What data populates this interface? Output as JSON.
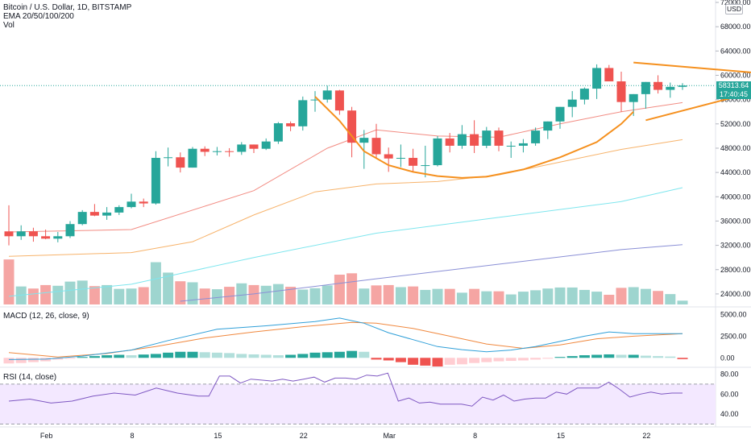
{
  "header": {
    "symbol_line": "Bitcoin / U.S. Dollar, 1D, BITSTAMP",
    "ema_line": "EMA 20/50/100/200",
    "vol_line": "Vol",
    "currency_badge": "USD"
  },
  "last_price": {
    "value": "58313.64",
    "countdown": "17:40:45"
  },
  "macd_legend": "MACD (12, 26, close, 9)",
  "rsi_legend": "RSI (14, close)",
  "colors": {
    "up": "#26a69a",
    "down": "#ef5350",
    "vol_up": "#9ed5cf",
    "vol_down": "#f5a5a3",
    "ema20": "#f28b82",
    "ema50": "#f7b36b",
    "ema100": "#7ee6ee",
    "ema200": "#8a8fd6",
    "macd": "#2f9fd8",
    "signal": "#f0883e",
    "pattern": "#f5901e"
  },
  "chart_data": [
    {
      "type": "candlestick",
      "title": "Bitcoin / U.S. Dollar, 1D, BITSTAMP",
      "ylim": [
        22000,
        72000
      ],
      "y_ticks": [
        "72000.00",
        "68000.00",
        "64000.00",
        "60000.00",
        "56000.00",
        "52000.00",
        "48000.00",
        "44000.00",
        "40000.00",
        "36000.00",
        "32000.00",
        "28000.00",
        "24000.00"
      ],
      "y_tick_values": [
        72000,
        68000,
        64000,
        60000,
        56000,
        52000,
        48000,
        44000,
        40000,
        36000,
        32000,
        28000,
        24000
      ],
      "x_ticks": [
        {
          "label": "Feb",
          "day": 4
        },
        {
          "label": "8",
          "day": 11
        },
        {
          "label": "15",
          "day": 18
        },
        {
          "label": "22",
          "day": 25
        },
        {
          "label": "Mar",
          "day": 32
        },
        {
          "label": "8",
          "day": 39
        },
        {
          "label": "15",
          "day": 46
        },
        {
          "label": "22",
          "day": 53
        }
      ],
      "ohlc": [
        [
          34300,
          38600,
          32000,
          33500
        ],
        [
          33500,
          35300,
          32900,
          34300
        ],
        [
          34300,
          34900,
          32600,
          33500
        ],
        [
          33500,
          34600,
          33000,
          33100
        ],
        [
          33100,
          34200,
          32500,
          33500
        ],
        [
          33500,
          36000,
          33200,
          35500
        ],
        [
          35500,
          37800,
          35300,
          37500
        ],
        [
          37500,
          38800,
          36800,
          36900
        ],
        [
          36900,
          38300,
          36200,
          37400
        ],
        [
          37400,
          38600,
          37000,
          38300
        ],
        [
          38300,
          40500,
          38100,
          39200
        ],
        [
          39200,
          39700,
          38300,
          38900
        ],
        [
          38900,
          47500,
          38700,
          46400
        ],
        [
          46400,
          48100,
          45000,
          46500
        ],
        [
          46500,
          47300,
          44000,
          44800
        ],
        [
          44800,
          48200,
          44800,
          47900
        ],
        [
          47900,
          48300,
          46700,
          47400
        ],
        [
          47400,
          48200,
          46800,
          47500
        ],
        [
          47500,
          48000,
          46600,
          47400
        ],
        [
          47400,
          49000,
          46900,
          48600
        ],
        [
          48600,
          48600,
          47200,
          47900
        ],
        [
          47900,
          49600,
          47700,
          49100
        ],
        [
          49100,
          52300,
          48700,
          52100
        ],
        [
          52100,
          52400,
          50800,
          51600
        ],
        [
          51600,
          56500,
          50900,
          55900
        ],
        [
          55900,
          57400,
          54000,
          56000
        ],
        [
          56000,
          58300,
          55500,
          57500
        ],
        [
          57500,
          57600,
          53500,
          54200
        ],
        [
          54200,
          54800,
          46500,
          48900
        ],
        [
          48900,
          51000,
          44600,
          49700
        ],
        [
          49700,
          52000,
          46300,
          47000
        ],
        [
          47000,
          48100,
          44100,
          46300
        ],
        [
          46300,
          48600,
          44900,
          46400
        ],
        [
          46400,
          47900,
          44000,
          45100
        ],
        [
          45100,
          48400,
          43200,
          45200
        ],
        [
          45200,
          50000,
          45000,
          49600
        ],
        [
          49600,
          50500,
          47300,
          48400
        ],
        [
          48400,
          51800,
          47900,
          50300
        ],
        [
          50300,
          52600,
          47200,
          48400
        ],
        [
          48400,
          51500,
          48000,
          50900
        ],
        [
          50900,
          51400,
          47500,
          48400
        ],
        [
          48400,
          49100,
          46400,
          48400
        ],
        [
          48400,
          49500,
          47300,
          48800
        ],
        [
          48800,
          51400,
          48400,
          50900
        ],
        [
          50900,
          52400,
          49500,
          52400
        ],
        [
          52400,
          54800,
          51200,
          54800
        ],
        [
          54800,
          57400,
          53100,
          56000
        ],
        [
          56000,
          58000,
          55200,
          57800
        ],
        [
          57800,
          61800,
          56100,
          61200
        ],
        [
          61200,
          61700,
          59200,
          59000
        ],
        [
          59000,
          60600,
          54000,
          55600
        ],
        [
          55600,
          56900,
          53300,
          56900
        ],
        [
          56900,
          58900,
          54500,
          58900
        ],
        [
          58900,
          60000,
          57000,
          57600
        ],
        [
          57600,
          58800,
          56300,
          58100
        ],
        [
          58100,
          58700,
          57600,
          58313.64
        ]
      ],
      "volume": [
        13,
        5.2,
        4.6,
        5.6,
        5.4,
        6.6,
        6.9,
        5.3,
        5.6,
        4.5,
        4.6,
        5.0,
        12.2,
        9.2,
        6.7,
        6.4,
        4.6,
        4.4,
        5.1,
        6.1,
        5.6,
        5.4,
        5.9,
        5.1,
        4.3,
        4.7,
        5.5,
        8.6,
        9.0,
        4.6,
        5.5,
        5.6,
        5.0,
        5.2,
        4.2,
        4.5,
        4.5,
        3.4,
        4.5,
        3.8,
        3.8,
        2.9,
        3.7,
        4.1,
        4.6,
        4.9,
        4.9,
        4.2,
        3.7,
        2.8,
        4.8,
        5.0,
        4.5,
        3.9,
        3.0,
        1.1
      ],
      "ema20": [
        [
          0,
          34200
        ],
        [
          10,
          34600
        ],
        [
          20,
          41000
        ],
        [
          26,
          48000
        ],
        [
          30,
          51000
        ],
        [
          35,
          50000
        ],
        [
          40,
          49800
        ],
        [
          45,
          52000
        ],
        [
          50,
          54000
        ],
        [
          55,
          55500
        ]
      ],
      "ema50": [
        [
          0,
          30200
        ],
        [
          10,
          30800
        ],
        [
          15,
          32600
        ],
        [
          20,
          37000
        ],
        [
          25,
          40800
        ],
        [
          30,
          42100
        ],
        [
          35,
          42500
        ],
        [
          40,
          43600
        ],
        [
          45,
          45700
        ],
        [
          50,
          47800
        ],
        [
          55,
          49400
        ]
      ],
      "ema100": [
        [
          0,
          23600
        ],
        [
          10,
          25600
        ],
        [
          20,
          30000
        ],
        [
          30,
          34000
        ],
        [
          40,
          36600
        ],
        [
          50,
          39200
        ],
        [
          55,
          41500
        ]
      ],
      "ema200": [
        [
          14,
          22800
        ],
        [
          20,
          24000
        ],
        [
          30,
          26500
        ],
        [
          40,
          28900
        ],
        [
          50,
          31300
        ],
        [
          55,
          32100
        ]
      ],
      "cup_pattern": [
        [
          25,
          56500
        ],
        [
          27,
          52500
        ],
        [
          29,
          47500
        ],
        [
          31,
          45200
        ],
        [
          33,
          44100
        ],
        [
          35,
          43400
        ],
        [
          37,
          43100
        ],
        [
          39,
          43300
        ],
        [
          42,
          44500
        ],
        [
          45,
          46500
        ],
        [
          48,
          49000
        ],
        [
          50,
          52000
        ],
        [
          51,
          54000
        ]
      ],
      "triangle_upper": [
        [
          51,
          62100
        ],
        [
          64,
          59900
        ]
      ],
      "triangle_lower": [
        [
          52,
          52600
        ],
        [
          64,
          58900
        ]
      ]
    },
    {
      "type": "macd",
      "title": "MACD (12, 26, close, 9)",
      "ylim": [
        -1000,
        5800
      ],
      "y_ticks": [
        "5000.00",
        "2500.00",
        "0.00"
      ],
      "y_tick_values": [
        5000,
        2500,
        0
      ],
      "histogram": [
        -650,
        -600,
        -500,
        -400,
        -200,
        -100,
        100,
        200,
        300,
        350,
        300,
        380,
        450,
        600,
        700,
        700,
        650,
        600,
        550,
        450,
        400,
        350,
        300,
        350,
        450,
        600,
        650,
        700,
        800,
        700,
        -200,
        -300,
        -500,
        -800,
        -900,
        -1000,
        -800,
        -750,
        -600,
        -500,
        -400,
        -350,
        -300,
        -200,
        -100,
        100,
        200,
        300,
        350,
        400,
        350,
        350,
        250,
        200,
        150,
        -150
      ],
      "macd_line": [
        [
          0,
          -200
        ],
        [
          3,
          -150
        ],
        [
          6,
          200
        ],
        [
          10,
          900
        ],
        [
          13,
          2000
        ],
        [
          17,
          3300
        ],
        [
          21,
          3700
        ],
        [
          25,
          4200
        ],
        [
          27,
          4600
        ],
        [
          29,
          4000
        ],
        [
          31,
          2900
        ],
        [
          33,
          2100
        ],
        [
          35,
          1300
        ],
        [
          37,
          950
        ],
        [
          39,
          700
        ],
        [
          41,
          900
        ],
        [
          43,
          1300
        ],
        [
          45,
          1900
        ],
        [
          47,
          2500
        ],
        [
          49,
          3000
        ],
        [
          51,
          2800
        ],
        [
          53,
          2800
        ],
        [
          55,
          2800
        ]
      ],
      "signal_line": [
        [
          0,
          600
        ],
        [
          4,
          100
        ],
        [
          8,
          500
        ],
        [
          12,
          1300
        ],
        [
          16,
          2300
        ],
        [
          20,
          3000
        ],
        [
          24,
          3600
        ],
        [
          28,
          4100
        ],
        [
          30,
          4000
        ],
        [
          33,
          3400
        ],
        [
          36,
          2500
        ],
        [
          39,
          1600
        ],
        [
          42,
          1100
        ],
        [
          45,
          1500
        ],
        [
          48,
          2200
        ],
        [
          51,
          2500
        ],
        [
          55,
          2800
        ]
      ]
    },
    {
      "type": "rsi",
      "title": "RSI (14, close)",
      "ylim": [
        28,
        86
      ],
      "y_ticks": [
        "80.00",
        "60.00",
        "40.00"
      ],
      "y_tick_values": [
        80,
        60,
        40
      ],
      "band": [
        30,
        70
      ],
      "rsi": [
        [
          0,
          53
        ],
        [
          2,
          55
        ],
        [
          4,
          51
        ],
        [
          6,
          53
        ],
        [
          8,
          58
        ],
        [
          10,
          61
        ],
        [
          12,
          59
        ],
        [
          14,
          66
        ],
        [
          16,
          61
        ],
        [
          18,
          58
        ],
        [
          19,
          58
        ],
        [
          20,
          78
        ],
        [
          21,
          78
        ],
        [
          22,
          71
        ],
        [
          23,
          75
        ],
        [
          24,
          74
        ],
        [
          25,
          73
        ],
        [
          26,
          75
        ],
        [
          27,
          73
        ],
        [
          28,
          75
        ],
        [
          29,
          77
        ],
        [
          30,
          72
        ],
        [
          31,
          76
        ],
        [
          32,
          76
        ],
        [
          33,
          75
        ],
        [
          34,
          79
        ],
        [
          35,
          78
        ],
        [
          36,
          81
        ],
        [
          37,
          53
        ],
        [
          38,
          56
        ],
        [
          39,
          51
        ],
        [
          40,
          52
        ],
        [
          41,
          50
        ],
        [
          42,
          50
        ],
        [
          43,
          50
        ],
        [
          44,
          48
        ],
        [
          45,
          57
        ],
        [
          46,
          54
        ],
        [
          47,
          59
        ],
        [
          48,
          53
        ],
        [
          49,
          55
        ],
        [
          50,
          56
        ],
        [
          51,
          56
        ],
        [
          52,
          62
        ],
        [
          53,
          60
        ],
        [
          54,
          66
        ],
        [
          55,
          66
        ],
        [
          56,
          66
        ],
        [
          57,
          72
        ],
        [
          58,
          65
        ],
        [
          59,
          57
        ],
        [
          60,
          60
        ],
        [
          61,
          62
        ],
        [
          62,
          60
        ],
        [
          63,
          61
        ],
        [
          64,
          61
        ]
      ]
    }
  ]
}
